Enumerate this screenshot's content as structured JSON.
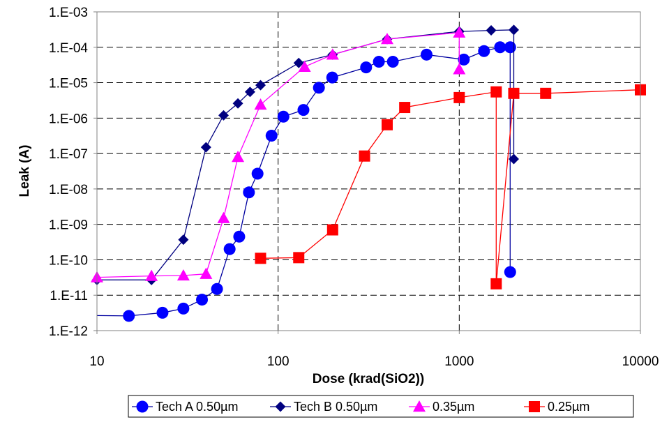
{
  "chart_data": {
    "type": "scatter",
    "title": "",
    "xlabel": "Dose (krad(SiO2))",
    "ylabel": "Leak (A)",
    "x_scale": "log",
    "y_scale": "log",
    "xlim": [
      10,
      10000
    ],
    "ylim": [
      1e-12,
      0.001
    ],
    "x_tick_labels": [
      "10",
      "100",
      "1000",
      "10000"
    ],
    "y_tick_labels": [
      "1.E-12",
      "1.E-11",
      "1.E-10",
      "1.E-09",
      "1.E-08",
      "1.E-07",
      "1.E-06",
      "1.E-05",
      "1.E-04",
      "1.E-03"
    ],
    "grid": "dashed major gridlines",
    "legend_position": "bottom",
    "series": [
      {
        "name": "Tech A 0.50µm",
        "color": "#0000ff",
        "line_color": "#0000a0",
        "marker": "circle",
        "points": [
          [
            8,
            2.7e-12
          ],
          [
            15,
            2.6e-12
          ],
          [
            23,
            3.2e-12
          ],
          [
            30,
            4.2e-12
          ],
          [
            38,
            7.5e-12
          ],
          [
            46,
            1.5e-11
          ],
          [
            54,
            2e-10
          ],
          [
            61,
            4.5e-10
          ],
          [
            69,
            8e-09
          ],
          [
            77,
            2.7e-08
          ],
          [
            92,
            3.2e-07
          ],
          [
            107,
            1.1e-06
          ],
          [
            138,
            1.7e-06
          ],
          [
            168,
            7.2e-06
          ],
          [
            199,
            1.4e-05
          ],
          [
            306,
            2.7e-05
          ],
          [
            360,
            3.9e-05
          ],
          [
            430,
            3.9e-05
          ],
          [
            660,
            6.2e-05
          ],
          [
            1060,
            4.5e-05
          ],
          [
            1370,
            7.8e-05
          ],
          [
            1680,
            0.0001
          ],
          [
            1910,
            0.0001
          ],
          [
            1910,
            4.5e-11
          ]
        ]
      },
      {
        "name": "Tech B 0.50µm",
        "color": "#000080",
        "line_color": "#000080",
        "marker": "diamond",
        "points": [
          [
            10,
            2.7e-11
          ],
          [
            20,
            2.7e-11
          ],
          [
            30,
            3.7e-10
          ],
          [
            40,
            1.5e-07
          ],
          [
            50,
            1.2e-06
          ],
          [
            60,
            2.6e-06
          ],
          [
            70,
            5.5e-06
          ],
          [
            80,
            8.5e-06
          ],
          [
            130,
            3.6e-05
          ],
          [
            200,
            6.2e-05
          ],
          [
            400,
            0.00017
          ],
          [
            1000,
            0.00028
          ],
          [
            1500,
            0.0003
          ],
          [
            2000,
            0.00031
          ],
          [
            2000,
            7e-08
          ]
        ]
      },
      {
        "name": "0.35µm",
        "color": "#ff00ff",
        "line_color": "#ff00ff",
        "marker": "triangle",
        "points": [
          [
            10,
            3.2e-11
          ],
          [
            20,
            3.5e-11
          ],
          [
            30,
            3.6e-11
          ],
          [
            40,
            4e-11
          ],
          [
            50,
            1.5e-09
          ],
          [
            60,
            8e-08
          ],
          [
            80,
            2.4e-06
          ],
          [
            140,
            2.8e-05
          ],
          [
            200,
            6.2e-05
          ],
          [
            400,
            0.00017
          ],
          [
            1000,
            0.00026
          ],
          [
            1000,
            2.4e-05
          ]
        ]
      },
      {
        "name": "0.25µm",
        "color": "#ff0000",
        "line_color": "#ff0000",
        "marker": "square",
        "points": [
          [
            80,
            1.1e-10
          ],
          [
            130,
            1.15e-10
          ],
          [
            200,
            7e-10
          ],
          [
            300,
            8.5e-08
          ],
          [
            400,
            6.5e-07
          ],
          [
            500,
            2e-06
          ],
          [
            1000,
            3.8e-06
          ],
          [
            1600,
            5.5e-06
          ],
          [
            1600,
            2.1e-11
          ],
          [
            2000,
            5e-06
          ],
          [
            3000,
            5e-06
          ],
          [
            10000,
            6.3e-06
          ]
        ]
      }
    ]
  }
}
